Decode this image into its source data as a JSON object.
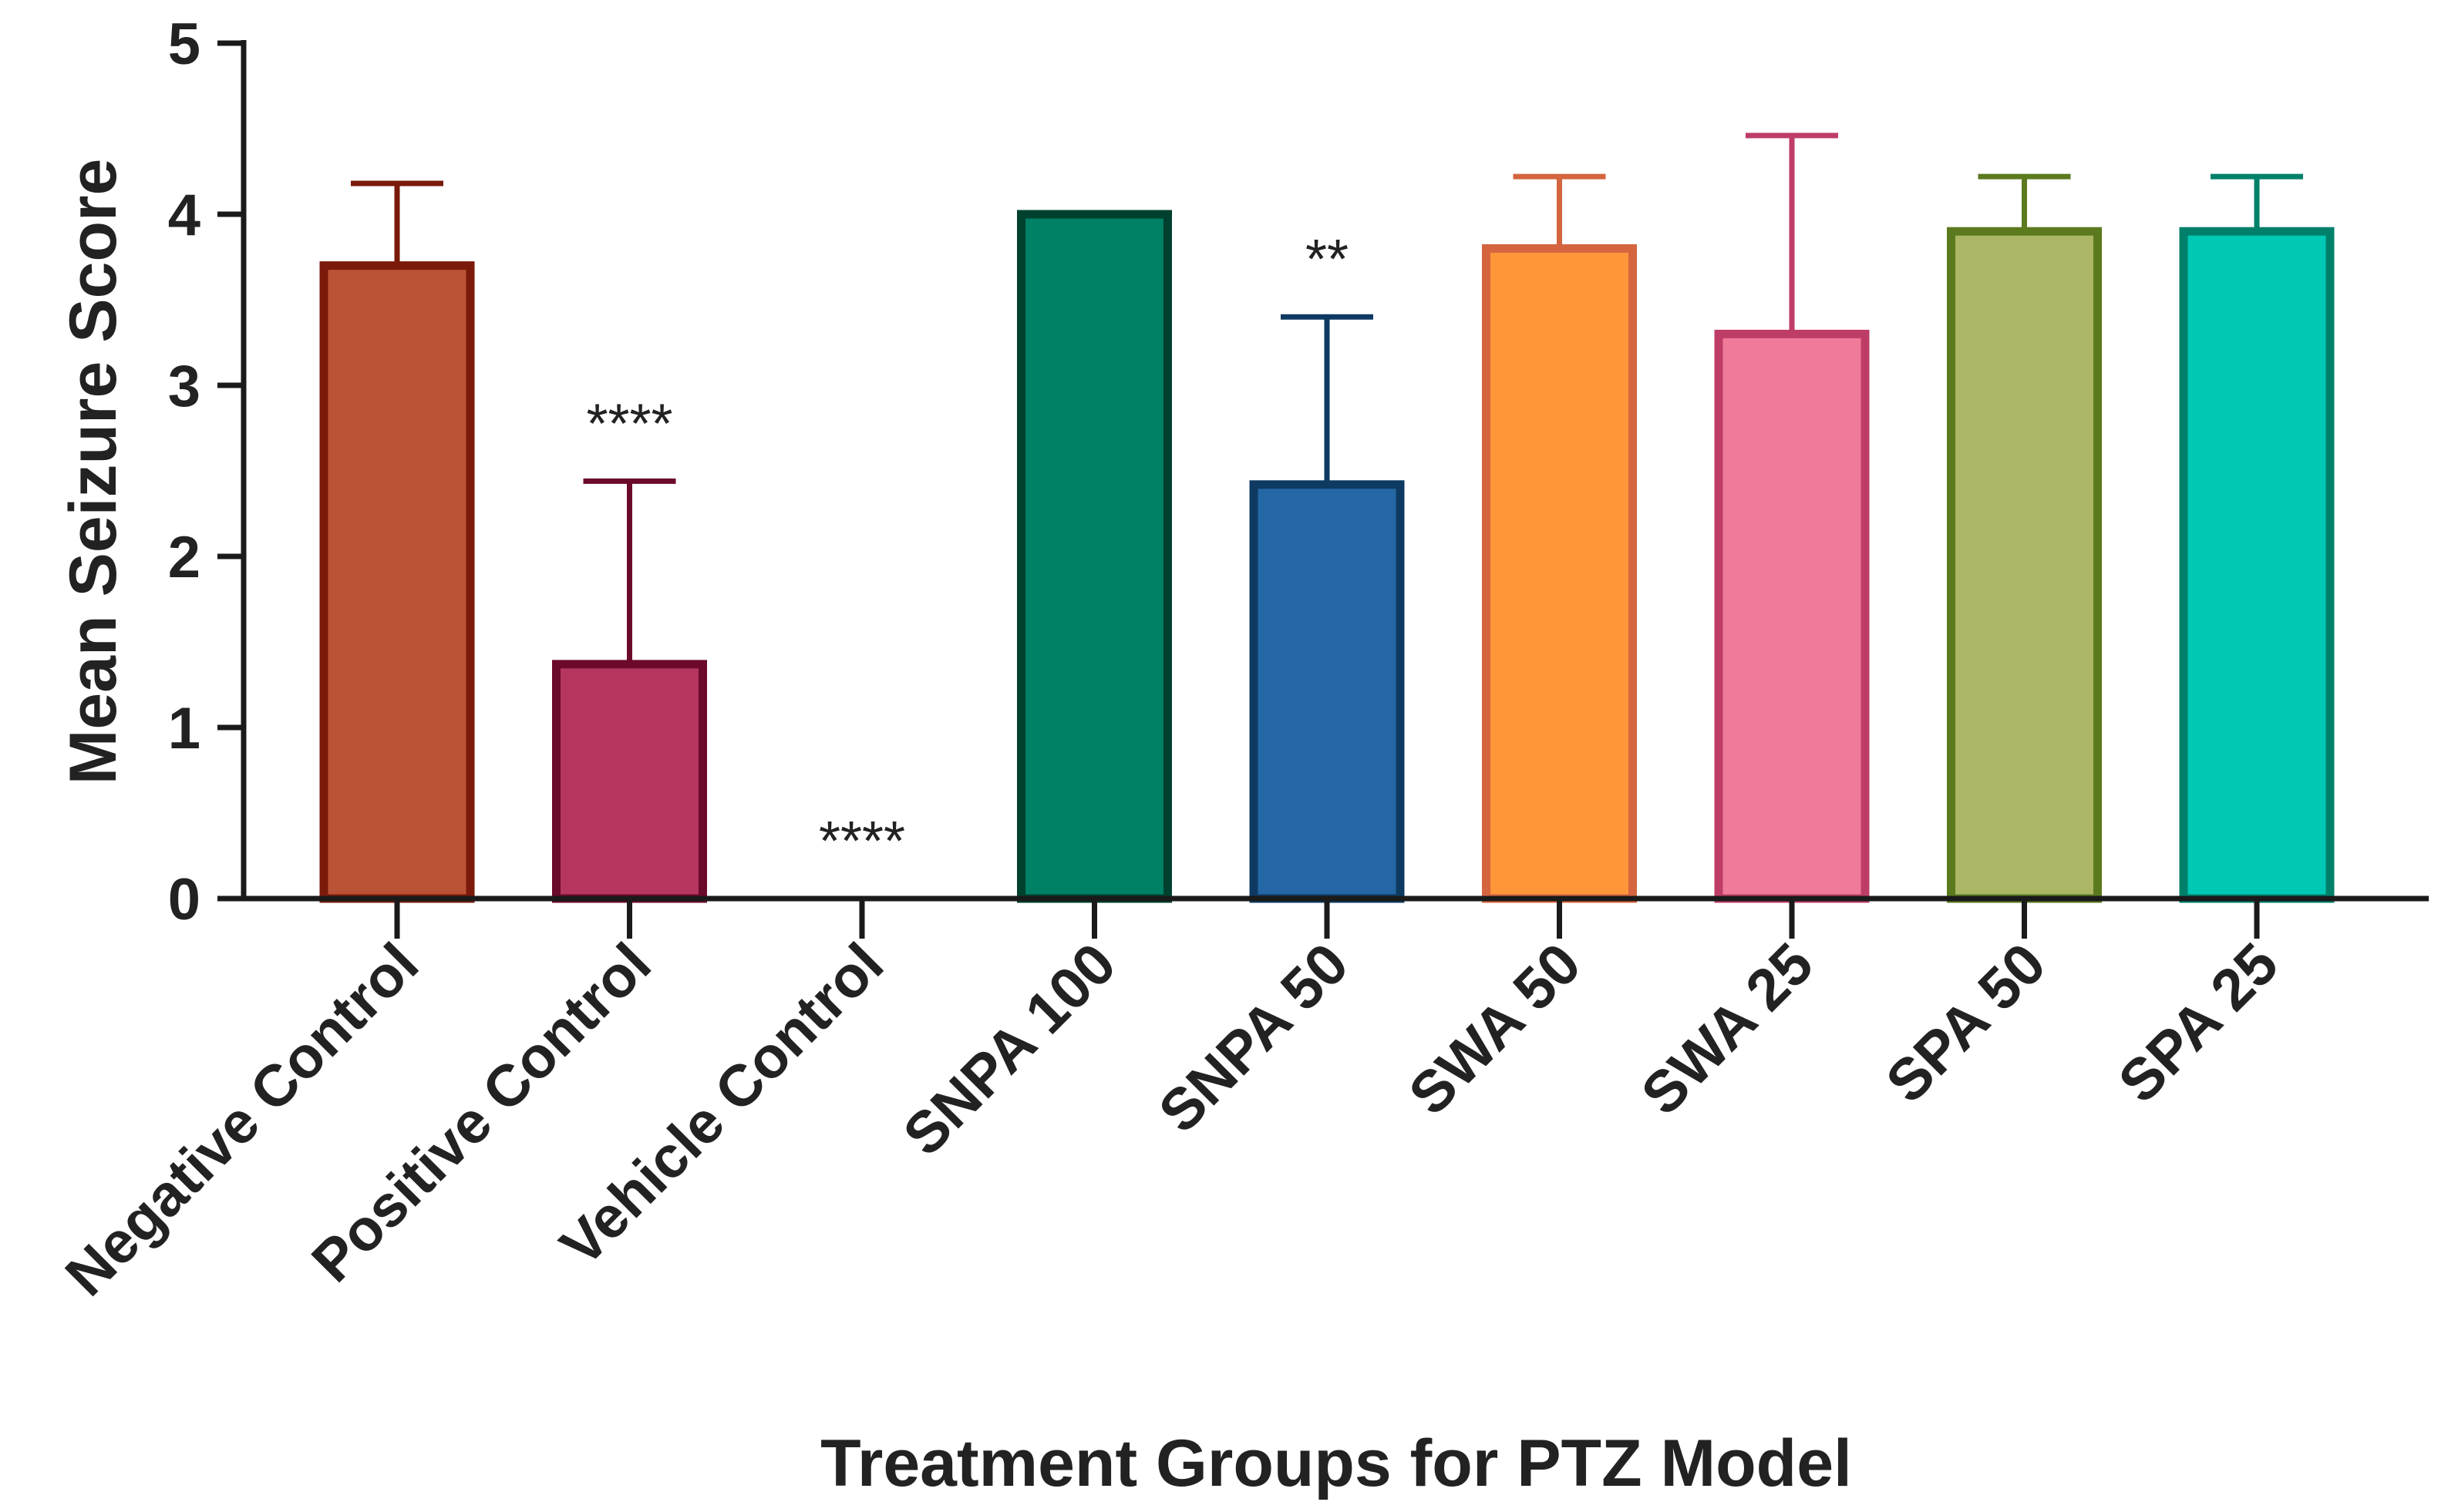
{
  "chart_data": {
    "type": "bar",
    "title": "",
    "xlabel": "Treatment Groups for PTZ Model",
    "ylabel": "Mean Seizure Score",
    "ylim": [
      0,
      5
    ],
    "yticks": [
      "0",
      "1",
      "2",
      "3",
      "4",
      "5"
    ],
    "categories": [
      "Negative Control",
      "Positive Control",
      "Vehicle Control",
      "SNPA 100",
      "SNPA 50",
      "SWA 50",
      "SWA 25",
      "SPA 50",
      "SPA 25"
    ],
    "values": [
      3.7,
      1.37,
      0,
      4.0,
      2.42,
      3.8,
      3.3,
      3.9,
      3.9
    ],
    "errors": [
      0.48,
      1.07,
      0,
      0,
      0.98,
      0.42,
      1.16,
      0.32,
      0.32
    ],
    "significance": [
      "",
      "****",
      "****",
      "",
      "**",
      "",
      "",
      "",
      ""
    ],
    "fill_colors": [
      "#BA5336",
      "#B5365E",
      "#FFFFFF",
      "#008065",
      "#2467A4",
      "#FF963A",
      "#F07A99",
      "#ACB766",
      "#00C8B4"
    ],
    "edge_colors": [
      "#7A1A0A",
      "#6B0A2A",
      "#1A1A1A",
      "#00402E",
      "#0E3A62",
      "#D4653E",
      "#BE3D66",
      "#5B7A1E",
      "#00806A"
    ]
  }
}
